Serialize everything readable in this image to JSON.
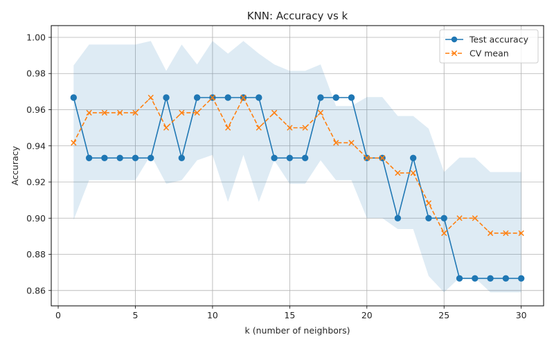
{
  "chart_data": {
    "type": "line",
    "title": "KNN: Accuracy vs k",
    "xlabel": "k (number of neighbors)",
    "ylabel": "Accuracy",
    "xlim": [
      -0.45,
      31.45
    ],
    "ylim": [
      0.8515,
      1.0065
    ],
    "xticks": [
      0,
      5,
      10,
      15,
      20,
      25,
      30
    ],
    "yticks": [
      0.86,
      0.88,
      0.9,
      0.92,
      0.94,
      0.96,
      0.98,
      1.0
    ],
    "grid": true,
    "legend_position": "top-right",
    "x": [
      1,
      2,
      3,
      4,
      5,
      6,
      7,
      8,
      9,
      10,
      11,
      12,
      13,
      14,
      15,
      16,
      17,
      18,
      19,
      20,
      21,
      22,
      23,
      24,
      25,
      26,
      27,
      28,
      29,
      30
    ],
    "series": [
      {
        "name": "Test accuracy",
        "color": "#1f77b4",
        "line_style": "solid",
        "marker": "circle",
        "values": [
          0.9667,
          0.9333,
          0.9333,
          0.9333,
          0.9333,
          0.9333,
          0.9667,
          0.9333,
          0.9667,
          0.9667,
          0.9667,
          0.9667,
          0.9667,
          0.9333,
          0.9333,
          0.9333,
          0.9667,
          0.9667,
          0.9667,
          0.9333,
          0.9333,
          0.9,
          0.9333,
          0.9,
          0.9,
          0.8667,
          0.8667,
          0.8667,
          0.8667,
          0.8667
        ]
      },
      {
        "name": "CV mean",
        "color": "#ff7f0e",
        "line_style": "dashed",
        "marker": "x",
        "values": [
          0.9417,
          0.9583,
          0.9583,
          0.9583,
          0.9583,
          0.9667,
          0.95,
          0.9583,
          0.9583,
          0.9667,
          0.95,
          0.9667,
          0.95,
          0.9583,
          0.95,
          0.95,
          0.9583,
          0.9417,
          0.9417,
          0.9333,
          0.9333,
          0.925,
          0.925,
          0.9083,
          0.8917,
          0.9,
          0.9,
          0.8917,
          0.8917,
          0.8917
        ]
      }
    ],
    "band": {
      "color": "#1f77b4",
      "opacity": 0.15,
      "upper": [
        0.9845,
        0.996,
        0.996,
        0.996,
        0.996,
        0.998,
        0.9815,
        0.996,
        0.985,
        0.998,
        0.991,
        0.998,
        0.991,
        0.985,
        0.9815,
        0.9815,
        0.985,
        0.962,
        0.962,
        0.967,
        0.967,
        0.9565,
        0.9565,
        0.9495,
        0.9255,
        0.9335,
        0.9335,
        0.9255,
        0.9255,
        0.9255
      ],
      "lower": [
        0.899,
        0.921,
        0.921,
        0.921,
        0.921,
        0.935,
        0.919,
        0.921,
        0.932,
        0.935,
        0.909,
        0.935,
        0.909,
        0.932,
        0.919,
        0.919,
        0.932,
        0.921,
        0.921,
        0.9,
        0.9,
        0.894,
        0.894,
        0.868,
        0.859,
        0.867,
        0.867,
        0.859,
        0.859,
        0.859
      ]
    }
  }
}
